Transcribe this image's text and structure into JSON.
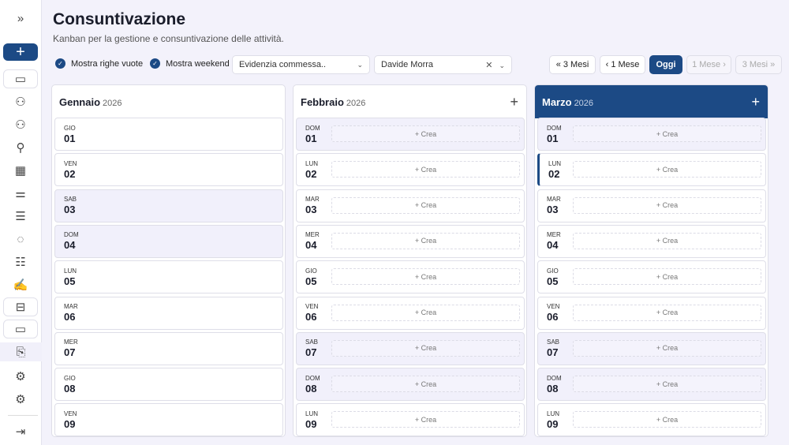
{
  "header": {
    "title": "Consuntivazione",
    "subtitle": "Kanban per la gestione e consuntivazione delle attività."
  },
  "sidebar": {
    "expand": "»",
    "new": "+",
    "items": [
      {
        "icon": "folder-icon",
        "glyph": "▭"
      },
      {
        "icon": "user-group-icon",
        "glyph": "⚇"
      },
      {
        "icon": "user-settings-icon",
        "glyph": "⚇"
      },
      {
        "icon": "signpost-icon",
        "glyph": "⚲"
      },
      {
        "icon": "grid-icon",
        "glyph": "▦"
      },
      {
        "icon": "sliders-icon",
        "glyph": "⚌"
      },
      {
        "icon": "document-icon",
        "glyph": "☰"
      },
      {
        "icon": "chat-icon",
        "glyph": "◌"
      },
      {
        "icon": "list-icon",
        "glyph": "☷"
      },
      {
        "icon": "signature-icon",
        "glyph": "✍"
      },
      {
        "icon": "briefcase-icon",
        "glyph": "⊟"
      },
      {
        "icon": "folder-icon",
        "glyph": "▭"
      },
      {
        "icon": "clipboard-check-icon",
        "glyph": "⎘"
      },
      {
        "icon": "gear-icon",
        "glyph": "⚙"
      },
      {
        "icon": "gear-icon",
        "glyph": "⚙"
      },
      {
        "icon": "logout-icon",
        "glyph": "⇥"
      }
    ]
  },
  "toolbar": {
    "show_empty": "Mostra righe vuote",
    "show_weekend": "Mostra weekend",
    "commessa_placeholder": "Evidenzia commessa..",
    "user": "Davide Morra",
    "nav": [
      "« 3 Mesi",
      "‹ 1 Mese",
      "Oggi",
      "1 Mese ›",
      "3 Mesi »"
    ]
  },
  "accent": "#1c4a85",
  "create_label": "+ Crea",
  "columns": [
    {
      "month": "Gennaio",
      "year": "2026",
      "current": false,
      "can_add": false,
      "days": [
        [
          "GIO",
          "01"
        ],
        [
          "VEN",
          "02"
        ],
        [
          "SAB",
          "03"
        ],
        [
          "DOM",
          "04"
        ],
        [
          "LUN",
          "05"
        ],
        [
          "MAR",
          "06"
        ],
        [
          "MER",
          "07"
        ],
        [
          "GIO",
          "08"
        ],
        [
          "VEN",
          "09"
        ]
      ],
      "weekend": [
        "03",
        "04"
      ]
    },
    {
      "month": "Febbraio",
      "year": "2026",
      "current": false,
      "can_add": true,
      "days": [
        [
          "DOM",
          "01"
        ],
        [
          "LUN",
          "02"
        ],
        [
          "MAR",
          "03"
        ],
        [
          "MER",
          "04"
        ],
        [
          "GIO",
          "05"
        ],
        [
          "VEN",
          "06"
        ],
        [
          "SAB",
          "07"
        ],
        [
          "DOM",
          "08"
        ],
        [
          "LUN",
          "09"
        ]
      ],
      "weekend": [
        "01",
        "07",
        "08"
      ]
    },
    {
      "month": "Marzo",
      "year": "2026",
      "current": true,
      "can_add": true,
      "today": "02",
      "days": [
        [
          "DOM",
          "01"
        ],
        [
          "LUN",
          "02"
        ],
        [
          "MAR",
          "03"
        ],
        [
          "MER",
          "04"
        ],
        [
          "GIO",
          "05"
        ],
        [
          "VEN",
          "06"
        ],
        [
          "SAB",
          "07"
        ],
        [
          "DOM",
          "08"
        ],
        [
          "LUN",
          "09"
        ]
      ],
      "weekend": [
        "01",
        "07",
        "08"
      ]
    }
  ]
}
